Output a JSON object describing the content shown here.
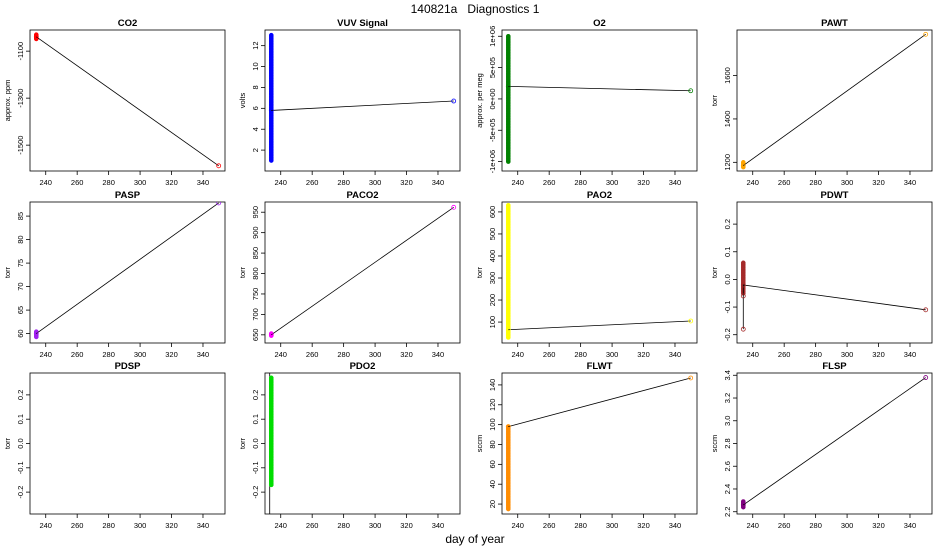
{
  "title": "140821a   Diagnostics 1",
  "xlabel": "day of year",
  "chart_data": [
    {
      "type": "scatter",
      "title": "CO2",
      "ylabel": "approx. ppm",
      "color": "#ff0000",
      "xlim": [
        230,
        354
      ],
      "ylim": [
        -1610,
        -1010
      ],
      "xticks": [
        240,
        260,
        280,
        300,
        320,
        340
      ],
      "yticks": [
        -1100,
        -1300,
        -1500
      ],
      "cluster": {
        "x": 234,
        "y": [
          -1030,
          -1048
        ]
      },
      "points": [
        {
          "x": 234,
          "y": -1039
        },
        {
          "x": 350,
          "y": -1588
        }
      ],
      "connect": true
    },
    {
      "type": "scatter",
      "title": "VUV Signal",
      "ylabel": "volts",
      "color": "#0000ff",
      "xlim": [
        230,
        354
      ],
      "ylim": [
        0,
        13.5
      ],
      "xticks": [
        240,
        260,
        280,
        300,
        320,
        340
      ],
      "yticks": [
        2,
        4,
        6,
        8,
        10,
        12
      ],
      "cluster": {
        "x": 234,
        "y": [
          1,
          13
        ]
      },
      "points": [
        {
          "x": 234,
          "y": 5.8
        },
        {
          "x": 350,
          "y": 6.7
        }
      ],
      "connect": true
    },
    {
      "type": "scatter",
      "title": "O2",
      "ylabel": "approx. per meg",
      "color": "#008000",
      "xlim": [
        230,
        354
      ],
      "ylim": [
        -1150000.0,
        1100000.0
      ],
      "xticks": [
        240,
        260,
        280,
        300,
        320,
        340
      ],
      "yticks": [
        -1000000,
        -500000,
        0,
        500000,
        1000000
      ],
      "ytick_labels": [
        "-1e+06",
        "-5e+05",
        "0e+00",
        "5e+05",
        "1e+06"
      ],
      "cluster": {
        "x": 234,
        "y": [
          -1000000.0,
          1000000.0
        ]
      },
      "points": [
        {
          "x": 234,
          "y": 200000
        },
        {
          "x": 350,
          "y": 130000
        }
      ],
      "connect": true
    },
    {
      "type": "scatter",
      "title": "PAWT",
      "ylabel": "torr",
      "color": "#ffa500",
      "xlim": [
        230,
        354
      ],
      "ylim": [
        1160,
        1810
      ],
      "xticks": [
        240,
        260,
        280,
        300,
        320,
        340
      ],
      "yticks": [
        1200,
        1400,
        1600
      ],
      "cluster": {
        "x": 234,
        "y": [
          1178,
          1200
        ]
      },
      "points": [
        {
          "x": 234,
          "y": 1185
        },
        {
          "x": 350,
          "y": 1790
        }
      ],
      "connect": true
    },
    {
      "type": "scatter",
      "title": "PASP",
      "ylabel": "torr",
      "color": "#a020f0",
      "xlim": [
        230,
        354
      ],
      "ylim": [
        58,
        88
      ],
      "xticks": [
        240,
        260,
        280,
        300,
        320,
        340
      ],
      "yticks": [
        60,
        65,
        70,
        75,
        80,
        85
      ],
      "cluster": {
        "x": 234,
        "y": [
          59.3,
          60.4
        ]
      },
      "points": [
        {
          "x": 234,
          "y": 60
        },
        {
          "x": 350,
          "y": 87.8
        }
      ],
      "connect": true
    },
    {
      "type": "scatter",
      "title": "PACO2",
      "ylabel": "torr",
      "color": "#ff00ff",
      "xlim": [
        230,
        354
      ],
      "ylim": [
        630,
        975
      ],
      "xticks": [
        240,
        260,
        280,
        300,
        320,
        340
      ],
      "yticks": [
        650,
        700,
        750,
        800,
        850,
        900,
        950
      ],
      "cluster": {
        "x": 234,
        "y": [
          648,
          653
        ]
      },
      "points": [
        {
          "x": 234,
          "y": 650
        },
        {
          "x": 350,
          "y": 962
        }
      ],
      "connect": true
    },
    {
      "type": "scatter",
      "title": "PAO2",
      "ylabel": "torr",
      "color": "#ffff00",
      "xlim": [
        230,
        354
      ],
      "ylim": [
        5,
        645
      ],
      "xticks": [
        240,
        260,
        280,
        300,
        320,
        340
      ],
      "yticks": [
        100,
        200,
        300,
        400,
        500,
        600
      ],
      "cluster": {
        "x": 234,
        "y": [
          30,
          630
        ]
      },
      "points": [
        {
          "x": 234,
          "y": 65
        },
        {
          "x": 350,
          "y": 105
        }
      ],
      "connect": true
    },
    {
      "type": "scatter",
      "title": "PDWT",
      "ylabel": "torr",
      "color": "#a52a2a",
      "xlim": [
        230,
        354
      ],
      "ylim": [
        -0.23,
        0.28
      ],
      "xticks": [
        240,
        260,
        280,
        300,
        320,
        340
      ],
      "yticks": [
        -0.2,
        -0.1,
        0.0,
        0.1,
        0.2
      ],
      "ytick_labels": [
        "-0.2",
        "-0.1",
        "0.0",
        "0.1",
        "0.2"
      ],
      "cluster": {
        "x": 234,
        "y": [
          -0.05,
          0.06
        ]
      },
      "points": [
        {
          "x": 234,
          "y": -0.06
        },
        {
          "x": 234,
          "y": -0.18
        },
        {
          "x": 234,
          "y": -0.02
        },
        {
          "x": 350,
          "y": -0.11
        }
      ],
      "connect": true
    },
    {
      "type": "scatter",
      "title": "PDSP",
      "ylabel": "torr",
      "color": "#000000",
      "xlim": [
        230,
        354
      ],
      "ylim": [
        -0.29,
        0.29
      ],
      "xticks": [
        240,
        260,
        280,
        300,
        320,
        340
      ],
      "yticks": [
        -0.2,
        -0.1,
        0.0,
        0.1,
        0.2
      ],
      "ytick_labels": [
        "-0.2",
        "-0.1",
        "0.0",
        "0.1",
        "0.2"
      ],
      "cluster": null,
      "points": [],
      "connect": false
    },
    {
      "type": "scatter",
      "title": "PDO2",
      "ylabel": "torr",
      "color": "#00dd00",
      "xlim": [
        230,
        354
      ],
      "ylim": [
        -0.29,
        0.29
      ],
      "xticks": [
        240,
        260,
        280,
        300,
        320,
        340
      ],
      "yticks": [
        -0.2,
        -0.1,
        0.0,
        0.1,
        0.2
      ],
      "ytick_labels": [
        "-0.2",
        "-0.1",
        "0.0",
        "0.1",
        "0.2"
      ],
      "cluster": {
        "x": 234,
        "y": [
          -0.17,
          0.27
        ]
      },
      "points": [],
      "connect": false,
      "vline_x": 233
    },
    {
      "type": "scatter",
      "title": "FLWT",
      "ylabel": "sccm",
      "color": "#ff8c00",
      "xlim": [
        230,
        354
      ],
      "ylim": [
        10,
        152
      ],
      "xticks": [
        240,
        260,
        280,
        300,
        320,
        340
      ],
      "yticks": [
        20,
        40,
        60,
        80,
        100,
        120,
        140
      ],
      "cluster": {
        "x": 234,
        "y": [
          15,
          98
        ]
      },
      "points": [
        {
          "x": 234,
          "y": 98
        },
        {
          "x": 350,
          "y": 147
        }
      ],
      "connect": true
    },
    {
      "type": "scatter",
      "title": "FLSP",
      "ylabel": "sccm",
      "color": "#800080",
      "xlim": [
        230,
        354
      ],
      "ylim": [
        2.18,
        3.42
      ],
      "xticks": [
        240,
        260,
        280,
        300,
        320,
        340
      ],
      "yticks": [
        2.2,
        2.4,
        2.6,
        2.8,
        3.0,
        3.2,
        3.4
      ],
      "ytick_labels": [
        "2.2",
        "2.4",
        "2.6",
        "2.8",
        "3.0",
        "3.2",
        "3.4"
      ],
      "cluster": {
        "x": 234,
        "y": [
          2.24,
          2.29
        ]
      },
      "points": [
        {
          "x": 234,
          "y": 2.26
        },
        {
          "x": 350,
          "y": 3.38
        }
      ],
      "connect": true
    }
  ]
}
